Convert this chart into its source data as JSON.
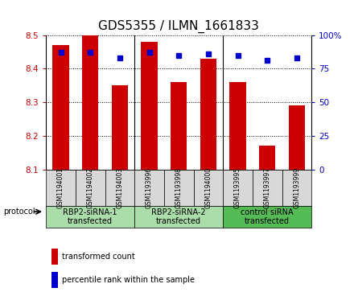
{
  "title": "GDS5355 / ILMN_1661833",
  "samples": [
    "GSM1194001",
    "GSM1194002",
    "GSM1194003",
    "GSM1193996",
    "GSM1193998",
    "GSM1194000",
    "GSM1193995",
    "GSM1193997",
    "GSM1193999"
  ],
  "transformed_counts": [
    8.47,
    8.5,
    8.35,
    8.48,
    8.36,
    8.43,
    8.36,
    8.17,
    8.29
  ],
  "percentile_ranks": [
    87,
    87,
    83,
    87,
    85,
    86,
    85,
    81,
    83
  ],
  "bar_color": "#cc0000",
  "dot_color": "#0000cc",
  "ylim_left": [
    8.1,
    8.5
  ],
  "ylim_right": [
    0,
    100
  ],
  "yticks_left": [
    8.1,
    8.2,
    8.3,
    8.4,
    8.5
  ],
  "yticks_right": [
    0,
    25,
    50,
    75,
    100
  ],
  "ytick_labels_right": [
    "0",
    "25",
    "50",
    "75",
    "100%"
  ],
  "groups": [
    {
      "label": "RBP2-siRNA-1\ntransfected",
      "indices": [
        0,
        1,
        2
      ],
      "color": "#aaddaa"
    },
    {
      "label": "RBP2-siRNA-2\ntransfected",
      "indices": [
        3,
        4,
        5
      ],
      "color": "#aaddaa"
    },
    {
      "label": "control siRNA\ntransfected",
      "indices": [
        6,
        7,
        8
      ],
      "color": "#55bb55"
    }
  ],
  "protocol_label": "protocol",
  "legend_red": "transformed count",
  "legend_blue": "percentile rank within the sample",
  "bar_width": 0.55,
  "sample_box_color": "#d8d8d8",
  "plot_bg_color": "#ffffff",
  "title_fontsize": 11,
  "tick_fontsize": 7.5,
  "sample_fontsize": 5.5,
  "group_fontsize": 7,
  "legend_fontsize": 7,
  "protocol_fontsize": 7
}
